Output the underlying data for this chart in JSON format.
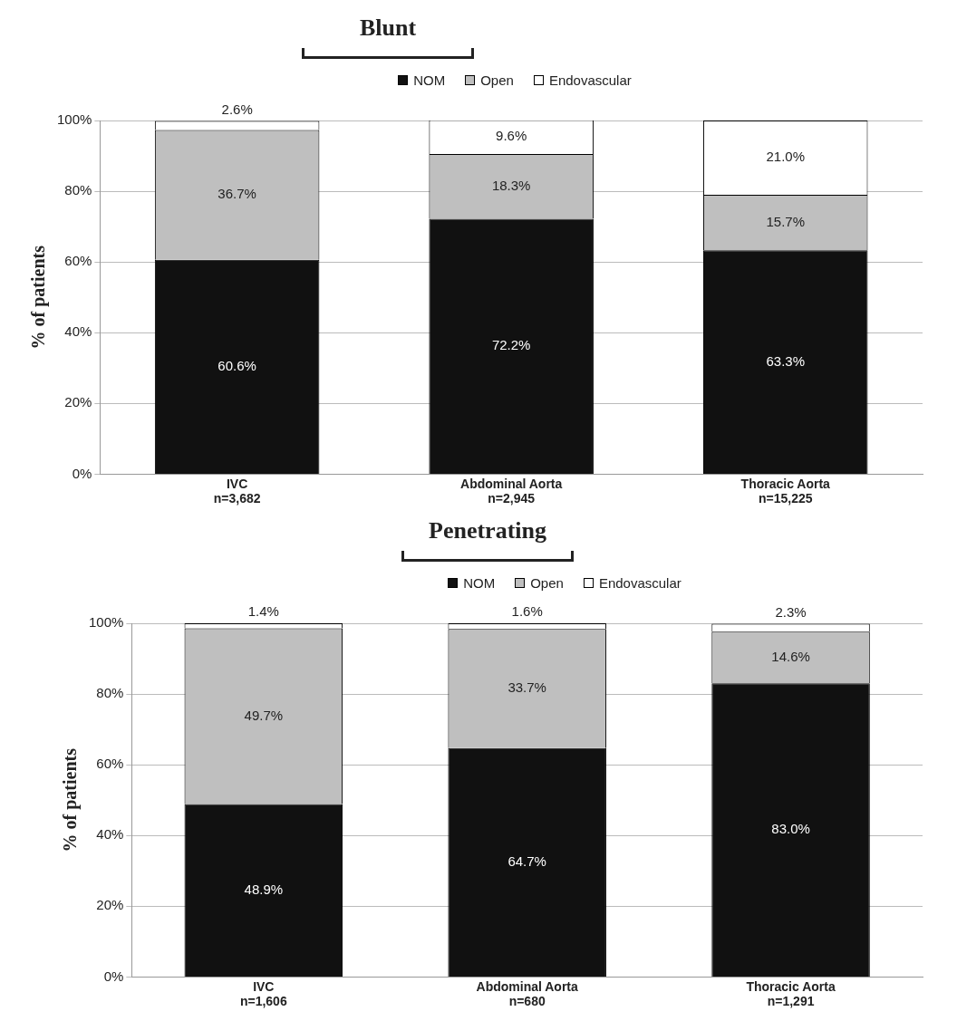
{
  "chart_data": [
    {
      "type": "bar",
      "title": "Blunt",
      "ylabel": "% of patients",
      "stacked": true,
      "categories": [
        "IVC\nn=3,682",
        "Abdominal Aorta\nn=2,945",
        "Thoracic Aorta\nn=15,225"
      ],
      "series": [
        {
          "name": "NOM",
          "color": "#111111",
          "values": [
            60.6,
            72.2,
            63.3
          ],
          "value_labels": [
            "60.6%",
            "72.2%",
            "63.3%"
          ]
        },
        {
          "name": "Open",
          "color": "#bfbfbf",
          "values": [
            36.7,
            18.3,
            15.7
          ],
          "value_labels": [
            "36.7%",
            "18.3%",
            "15.7%"
          ]
        },
        {
          "name": "Endovascular",
          "color": "#ffffff",
          "values": [
            2.6,
            9.6,
            21.0
          ],
          "value_labels": [
            "2.6%",
            "9.6%",
            "21.0%"
          ]
        }
      ],
      "ylim": [
        0,
        100
      ],
      "yticks": [
        {
          "value": 0,
          "label": "0%"
        },
        {
          "value": 20,
          "label": "20%"
        },
        {
          "value": 40,
          "label": "40%"
        },
        {
          "value": 60,
          "label": "60%"
        },
        {
          "value": 80,
          "label": "80%"
        },
        {
          "value": 100,
          "label": "100%"
        }
      ],
      "grid": "y",
      "legend": "top"
    },
    {
      "type": "bar",
      "title": "Penetrating",
      "ylabel": "% of patients",
      "stacked": true,
      "categories": [
        "IVC\nn=1,606",
        "Abdominal Aorta\nn=680",
        "Thoracic Aorta\nn=1,291"
      ],
      "series": [
        {
          "name": "NOM",
          "color": "#111111",
          "values": [
            48.9,
            64.7,
            83.0
          ],
          "value_labels": [
            "48.9%",
            "64.7%",
            "83.0%"
          ]
        },
        {
          "name": "Open",
          "color": "#bfbfbf",
          "values": [
            49.7,
            33.7,
            14.6
          ],
          "value_labels": [
            "49.7%",
            "33.7%",
            "14.6%"
          ]
        },
        {
          "name": "Endovascular",
          "color": "#ffffff",
          "values": [
            1.4,
            1.6,
            2.3
          ],
          "value_labels": [
            "1.4%",
            "1.6%",
            "2.3%"
          ]
        }
      ],
      "ylim": [
        0,
        100
      ],
      "yticks": [
        {
          "value": 0,
          "label": "0%"
        },
        {
          "value": 20,
          "label": "20%"
        },
        {
          "value": 40,
          "label": "40%"
        },
        {
          "value": 60,
          "label": "60%"
        },
        {
          "value": 80,
          "label": "80%"
        },
        {
          "value": 100,
          "label": "100%"
        }
      ],
      "grid": "y",
      "legend": "top"
    }
  ]
}
